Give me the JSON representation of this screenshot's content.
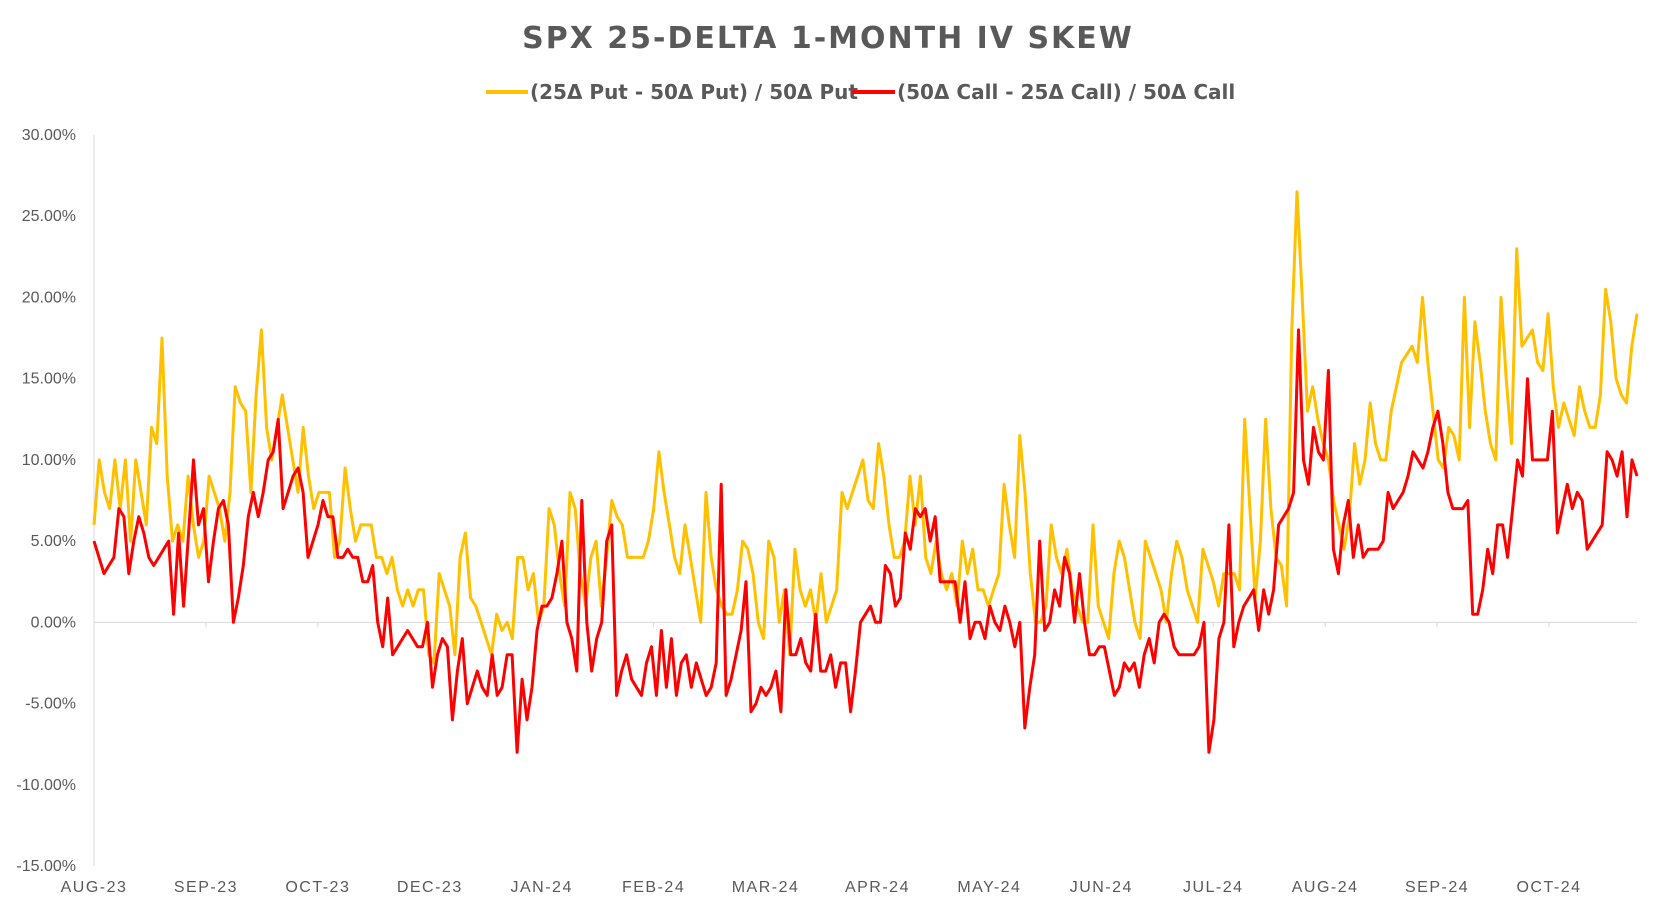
{
  "chart_data": {
    "type": "line",
    "title": "SPX 25-DELTA 1-MONTH IV SKEW",
    "ylim": [
      -0.15,
      0.3
    ],
    "y_ticks": [
      "30.00%",
      "25.00%",
      "20.00%",
      "15.00%",
      "10.00%",
      "5.00%",
      "0.00%",
      "-5.00%",
      "-10.00%",
      "-15.00%"
    ],
    "y_tick_values": [
      0.3,
      0.25,
      0.2,
      0.15,
      0.1,
      0.05,
      0.0,
      -0.05,
      -0.1,
      -0.15
    ],
    "x_ticks": [
      "AUG-23",
      "SEP-23",
      "OCT-23",
      "DEC-23",
      "JAN-24",
      "FEB-24",
      "MAR-24",
      "APR-24",
      "MAY-24",
      "JUN-24",
      "JUL-24",
      "AUG-24",
      "SEP-24",
      "OCT-24"
    ],
    "legend_position": "top",
    "grid": false,
    "series": [
      {
        "name": "(25Δ Put - 50Δ Put) / 50Δ Put",
        "color": "#FFC000",
        "values": [
          0.06,
          0.1,
          0.08,
          0.07,
          0.1,
          0.07,
          0.1,
          0.05,
          0.1,
          0.08,
          0.06,
          0.12,
          0.11,
          0.175,
          0.09,
          0.05,
          0.06,
          0.05,
          0.09,
          0.06,
          0.04,
          0.05,
          0.09,
          0.08,
          0.07,
          0.05,
          0.08,
          0.145,
          0.135,
          0.13,
          0.08,
          0.14,
          0.18,
          0.12,
          0.1,
          0.12,
          0.14,
          0.12,
          0.1,
          0.08,
          0.12,
          0.09,
          0.07,
          0.08,
          0.08,
          0.08,
          0.04,
          0.05,
          0.095,
          0.07,
          0.05,
          0.06,
          0.06,
          0.06,
          0.04,
          0.04,
          0.03,
          0.04,
          0.02,
          0.01,
          0.02,
          0.01,
          0.02,
          0.02,
          -0.02,
          -0.025,
          0.03,
          0.02,
          0.01,
          -0.02,
          0.04,
          0.055,
          0.015,
          0.01,
          0.0,
          -0.01,
          -0.02,
          0.005,
          -0.005,
          0.0,
          -0.01,
          0.04,
          0.04,
          0.02,
          0.03,
          0.0,
          0.01,
          0.07,
          0.06,
          0.03,
          0.01,
          0.08,
          0.07,
          0.03,
          0.01,
          0.04,
          0.05,
          0.01,
          0.04,
          0.075,
          0.065,
          0.06,
          0.04,
          0.04,
          0.04,
          0.04,
          0.05,
          0.07,
          0.105,
          0.08,
          0.06,
          0.04,
          0.03,
          0.06,
          0.04,
          0.02,
          0.0,
          0.08,
          0.04,
          0.02,
          0.01,
          0.005,
          0.005,
          0.02,
          0.05,
          0.045,
          0.03,
          0.0,
          -0.01,
          0.05,
          0.04,
          0.0,
          0.02,
          -0.02,
          0.045,
          0.02,
          0.01,
          0.02,
          0.0,
          0.03,
          0.0,
          0.01,
          0.02,
          0.08,
          0.07,
          0.08,
          0.09,
          0.1,
          0.075,
          0.07,
          0.11,
          0.09,
          0.06,
          0.04,
          0.04,
          0.05,
          0.09,
          0.06,
          0.09,
          0.04,
          0.03,
          0.05,
          0.03,
          0.02,
          0.03,
          0.01,
          0.05,
          0.03,
          0.045,
          0.02,
          0.02,
          0.01,
          0.02,
          0.03,
          0.085,
          0.06,
          0.04,
          0.115,
          0.08,
          0.03,
          0.0,
          0.0,
          0.01,
          0.06,
          0.04,
          0.03,
          0.045,
          0.02,
          0.01,
          0.0,
          0.0,
          0.06,
          0.01,
          0.0,
          -0.01,
          0.03,
          0.05,
          0.04,
          0.02,
          0.0,
          -0.01,
          0.05,
          0.04,
          0.03,
          0.02,
          0.0,
          0.03,
          0.05,
          0.04,
          0.02,
          0.01,
          0.0,
          0.045,
          0.035,
          0.025,
          0.01,
          0.03,
          0.03,
          0.03,
          0.02,
          0.125,
          0.07,
          0.015,
          0.05,
          0.125,
          0.07,
          0.04,
          0.035,
          0.01,
          0.18,
          0.265,
          0.2,
          0.13,
          0.145,
          0.125,
          0.11,
          0.1,
          0.075,
          0.06,
          0.045,
          0.065,
          0.11,
          0.085,
          0.1,
          0.135,
          0.11,
          0.1,
          0.1,
          0.13,
          0.145,
          0.16,
          0.165,
          0.17,
          0.16,
          0.2,
          0.16,
          0.13,
          0.1,
          0.095,
          0.12,
          0.115,
          0.1,
          0.2,
          0.12,
          0.185,
          0.16,
          0.13,
          0.11,
          0.1,
          0.2,
          0.15,
          0.11,
          0.23,
          0.17,
          0.175,
          0.18,
          0.16,
          0.155,
          0.19,
          0.145,
          0.12,
          0.135,
          0.125,
          0.115,
          0.145,
          0.13,
          0.12,
          0.12,
          0.14,
          0.205,
          0.185,
          0.15,
          0.14,
          0.135,
          0.17,
          0.19
        ]
      },
      {
        "name": "(50Δ Call - 25Δ Call) / 50Δ Call",
        "color": "#FF0000",
        "values": [
          0.05,
          0.04,
          0.03,
          0.035,
          0.04,
          0.07,
          0.065,
          0.03,
          0.05,
          0.065,
          0.055,
          0.04,
          0.035,
          0.04,
          0.045,
          0.05,
          0.005,
          0.055,
          0.01,
          0.055,
          0.1,
          0.06,
          0.07,
          0.025,
          0.05,
          0.07,
          0.075,
          0.06,
          0.0,
          0.015,
          0.035,
          0.065,
          0.08,
          0.065,
          0.08,
          0.1,
          0.105,
          0.125,
          0.07,
          0.08,
          0.09,
          0.095,
          0.08,
          0.04,
          0.05,
          0.06,
          0.075,
          0.065,
          0.065,
          0.04,
          0.04,
          0.045,
          0.04,
          0.04,
          0.025,
          0.025,
          0.035,
          0.0,
          -0.015,
          0.015,
          -0.02,
          -0.015,
          -0.01,
          -0.005,
          -0.01,
          -0.015,
          -0.015,
          0.0,
          -0.04,
          -0.02,
          -0.01,
          -0.015,
          -0.06,
          -0.03,
          -0.01,
          -0.05,
          -0.04,
          -0.03,
          -0.04,
          -0.045,
          -0.02,
          -0.045,
          -0.04,
          -0.02,
          -0.02,
          -0.08,
          -0.035,
          -0.06,
          -0.04,
          -0.005,
          0.01,
          0.01,
          0.015,
          0.03,
          0.05,
          0.0,
          -0.01,
          -0.03,
          0.075,
          0.0,
          -0.03,
          -0.01,
          0.0,
          0.05,
          0.06,
          -0.045,
          -0.03,
          -0.02,
          -0.035,
          -0.04,
          -0.045,
          -0.025,
          -0.015,
          -0.045,
          -0.005,
          -0.04,
          -0.01,
          -0.045,
          -0.025,
          -0.02,
          -0.04,
          -0.025,
          -0.035,
          -0.045,
          -0.04,
          -0.025,
          0.085,
          -0.045,
          -0.035,
          -0.02,
          -0.005,
          0.025,
          -0.055,
          -0.05,
          -0.04,
          -0.045,
          -0.04,
          -0.03,
          -0.055,
          0.02,
          -0.02,
          -0.02,
          -0.01,
          -0.025,
          -0.03,
          0.005,
          -0.03,
          -0.03,
          -0.02,
          -0.04,
          -0.025,
          -0.025,
          -0.055,
          -0.03,
          0.0,
          0.005,
          0.01,
          0.0,
          0.0,
          0.035,
          0.03,
          0.01,
          0.015,
          0.055,
          0.045,
          0.07,
          0.065,
          0.07,
          0.05,
          0.065,
          0.025,
          0.025,
          0.025,
          0.025,
          0.0,
          0.025,
          -0.01,
          0.0,
          0.0,
          -0.01,
          0.01,
          0.0,
          -0.005,
          0.01,
          0.0,
          -0.015,
          0.0,
          -0.065,
          -0.04,
          -0.02,
          0.05,
          -0.005,
          0.0,
          0.02,
          0.01,
          0.04,
          0.03,
          0.0,
          0.03,
          0.0,
          -0.02,
          -0.02,
          -0.015,
          -0.015,
          -0.03,
          -0.045,
          -0.04,
          -0.025,
          -0.03,
          -0.025,
          -0.04,
          -0.02,
          -0.01,
          -0.025,
          0.0,
          0.005,
          0.0,
          -0.015,
          -0.02,
          -0.02,
          -0.02,
          -0.02,
          -0.015,
          0.0,
          -0.08,
          -0.06,
          -0.01,
          0.0,
          0.06,
          -0.015,
          0.0,
          0.01,
          0.015,
          0.02,
          -0.005,
          0.02,
          0.005,
          0.02,
          0.06,
          0.065,
          0.07,
          0.08,
          0.18,
          0.1,
          0.085,
          0.12,
          0.105,
          0.1,
          0.155,
          0.045,
          0.03,
          0.06,
          0.075,
          0.04,
          0.06,
          0.04,
          0.045,
          0.045,
          0.045,
          0.05,
          0.08,
          0.07,
          0.075,
          0.08,
          0.09,
          0.105,
          0.1,
          0.095,
          0.105,
          0.12,
          0.13,
          0.11,
          0.08,
          0.07,
          0.07,
          0.07,
          0.075,
          0.005,
          0.005,
          0.02,
          0.045,
          0.03,
          0.06,
          0.06,
          0.04,
          0.07,
          0.1,
          0.09,
          0.15,
          0.1,
          0.1,
          0.1,
          0.1,
          0.13,
          0.055,
          0.07,
          0.085,
          0.07,
          0.08,
          0.075,
          0.045,
          0.05,
          0.055,
          0.06,
          0.105,
          0.1,
          0.09,
          0.105,
          0.065,
          0.1,
          0.09
        ]
      }
    ]
  }
}
